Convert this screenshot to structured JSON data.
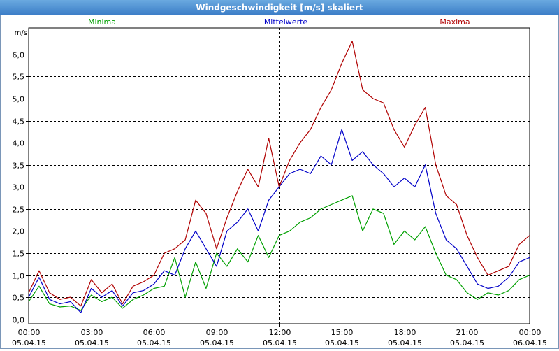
{
  "window": {
    "title": "Windgeschwindigkeit [m/s] skaliert"
  },
  "colors": {
    "min": "#00a000",
    "mean": "#0000c8",
    "max": "#b00000",
    "grid": "#000000"
  },
  "chart_data": {
    "type": "line",
    "title": "Windgeschwindigkeit [m/s] skaliert",
    "ylabel": "m/s",
    "ylim": [
      -0.1,
      6.6
    ],
    "yticks": [
      "0,0",
      "0,5",
      "1,0",
      "1,5",
      "2,0",
      "2,5",
      "3,0",
      "3,5",
      "4,0",
      "4,5",
      "5,0",
      "5,5",
      "6,0"
    ],
    "xlim": [
      0,
      24
    ],
    "xticks": [
      {
        "t": "00:00",
        "d": "05.04.15"
      },
      {
        "t": "03:00",
        "d": "05.04.15"
      },
      {
        "t": "06:00",
        "d": "05.04.15"
      },
      {
        "t": "09:00",
        "d": "05.04.15"
      },
      {
        "t": "12:00",
        "d": "05.04.15"
      },
      {
        "t": "15:00",
        "d": "05.04.15"
      },
      {
        "t": "18:00",
        "d": "05.04.15"
      },
      {
        "t": "21:00",
        "d": "05.04.15"
      },
      {
        "t": "00:00",
        "d": "06.04.15"
      }
    ],
    "grid": true,
    "series": [
      {
        "name": "Minima",
        "color": "#00a000",
        "x": [
          0,
          0.5,
          1,
          1.5,
          2,
          2.5,
          3,
          3.5,
          4,
          4.5,
          5,
          5.5,
          6,
          6.5,
          7,
          7.5,
          8,
          8.5,
          9,
          9.5,
          10,
          10.5,
          11,
          11.5,
          12,
          12.5,
          13,
          13.5,
          14,
          14.5,
          15,
          15.5,
          16,
          16.5,
          17,
          17.5,
          18,
          18.5,
          19,
          19.5,
          20,
          20.5,
          21,
          21.5,
          22,
          22.5,
          23,
          23.5,
          24
        ],
        "values": [
          0.4,
          0.75,
          0.35,
          0.28,
          0.3,
          0.2,
          0.55,
          0.4,
          0.5,
          0.25,
          0.45,
          0.55,
          0.7,
          0.75,
          1.4,
          0.5,
          1.3,
          0.7,
          1.5,
          1.2,
          1.6,
          1.3,
          1.9,
          1.4,
          1.9,
          2.0,
          2.2,
          2.3,
          2.5,
          2.6,
          2.7,
          2.8,
          2.0,
          2.5,
          2.4,
          1.7,
          2.0,
          1.8,
          2.1,
          1.5,
          1.0,
          0.9,
          0.6,
          0.45,
          0.6,
          0.55,
          0.65,
          0.9,
          1.0
        ]
      },
      {
        "name": "Mittelwerte",
        "color": "#0000c8",
        "x": [
          0,
          0.5,
          1,
          1.5,
          2,
          2.5,
          3,
          3.5,
          4,
          4.5,
          5,
          5.5,
          6,
          6.5,
          7,
          7.5,
          8,
          8.5,
          9,
          9.5,
          10,
          10.5,
          11,
          11.5,
          12,
          12.5,
          13,
          13.5,
          14,
          14.5,
          15,
          15.5,
          16,
          16.5,
          17,
          17.5,
          18,
          18.5,
          19,
          19.5,
          20,
          20.5,
          21,
          21.5,
          22,
          22.5,
          23,
          23.5,
          24
        ],
        "values": [
          0.5,
          0.95,
          0.45,
          0.35,
          0.4,
          0.15,
          0.7,
          0.5,
          0.65,
          0.3,
          0.6,
          0.65,
          0.8,
          1.1,
          1.0,
          1.6,
          2.0,
          1.6,
          1.2,
          2.0,
          2.2,
          2.5,
          2.0,
          2.7,
          3.0,
          3.3,
          3.4,
          3.3,
          3.7,
          3.5,
          4.3,
          3.6,
          3.8,
          3.5,
          3.3,
          3.0,
          3.2,
          3.0,
          3.5,
          2.4,
          1.8,
          1.6,
          1.2,
          0.8,
          0.7,
          0.75,
          0.95,
          1.3,
          1.4
        ]
      },
      {
        "name": "Maxima",
        "color": "#b00000",
        "x": [
          0,
          0.5,
          1,
          1.5,
          2,
          2.5,
          3,
          3.5,
          4,
          4.5,
          5,
          5.5,
          6,
          6.5,
          7,
          7.5,
          8,
          8.5,
          9,
          9.5,
          10,
          10.5,
          11,
          11.5,
          12,
          12.5,
          13,
          13.5,
          14,
          14.5,
          15,
          15.5,
          16,
          16.5,
          17,
          17.5,
          18,
          18.5,
          19,
          19.5,
          20,
          20.5,
          21,
          21.5,
          22,
          22.5,
          23,
          23.5,
          24
        ],
        "values": [
          0.6,
          1.1,
          0.6,
          0.45,
          0.5,
          0.3,
          0.9,
          0.6,
          0.8,
          0.35,
          0.75,
          0.85,
          1.0,
          1.5,
          1.6,
          1.8,
          2.7,
          2.4,
          1.6,
          2.3,
          2.9,
          3.4,
          3.0,
          4.1,
          3.0,
          3.6,
          4.0,
          4.3,
          4.8,
          5.2,
          5.8,
          6.3,
          5.2,
          5.0,
          4.9,
          4.3,
          3.9,
          4.4,
          4.8,
          3.5,
          2.8,
          2.6,
          1.9,
          1.4,
          1.0,
          1.1,
          1.2,
          1.7,
          1.9
        ]
      }
    ]
  }
}
